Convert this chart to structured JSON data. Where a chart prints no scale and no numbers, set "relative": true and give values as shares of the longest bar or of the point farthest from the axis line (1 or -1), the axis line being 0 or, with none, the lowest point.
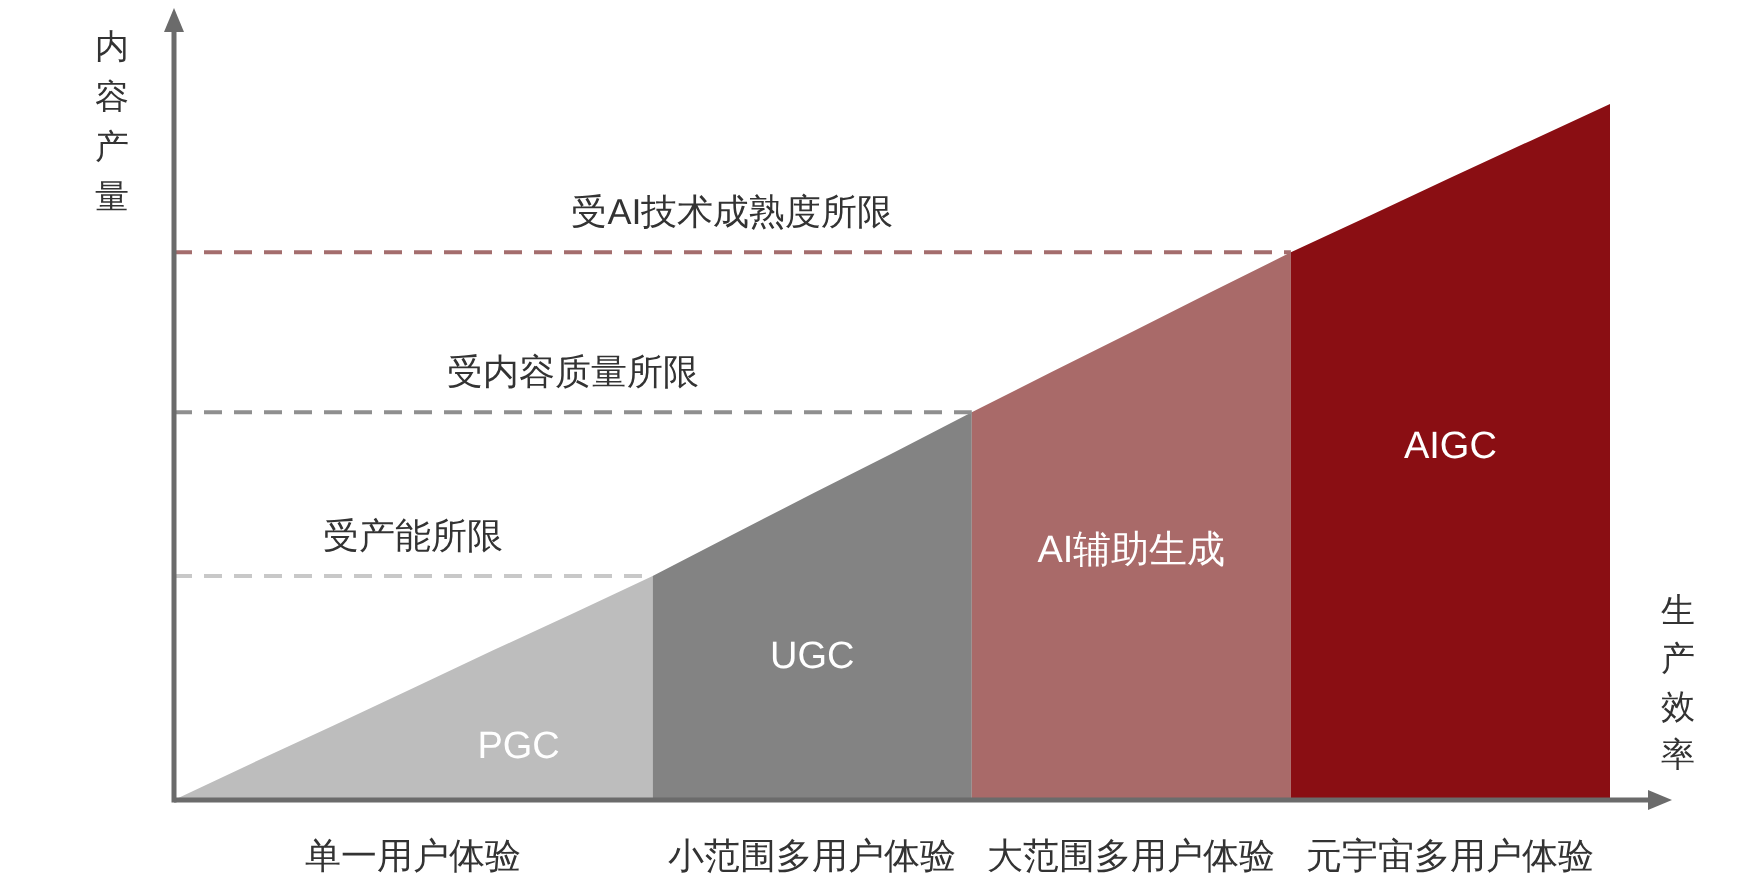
{
  "chart_data": {
    "type": "area",
    "relative": true,
    "xlabel": "生产效率",
    "ylabel": "内容产量",
    "categories": [
      null,
      null,
      null,
      "单一用户体验",
      null,
      null,
      null,
      null,
      "小范围多用户体验",
      null,
      null,
      null,
      "大范围多用户体验",
      null,
      null,
      null,
      "元宇宙多用户体验",
      null,
      null
    ],
    "series": [
      {
        "name": "PGC",
        "color": "#bdbdbd",
        "values": [
          0,
          0.054,
          0.107,
          0.161,
          0.215,
          0.268,
          0.322,
          null,
          null,
          null,
          null,
          null,
          null,
          null,
          null,
          null,
          null,
          null,
          null
        ]
      },
      {
        "name": "UGC",
        "color": "#838383",
        "values": [
          null,
          null,
          null,
          null,
          null,
          null,
          0.322,
          0.381,
          0.44,
          0.498,
          0.557,
          null,
          null,
          null,
          null,
          null,
          null,
          null,
          null
        ]
      },
      {
        "name": "AI辅助生成",
        "color": "#a96a69",
        "values": [
          null,
          null,
          null,
          null,
          null,
          null,
          null,
          null,
          null,
          null,
          0.557,
          0.615,
          0.672,
          0.73,
          0.787,
          null,
          null,
          null,
          null
        ]
      },
      {
        "name": "AIGC",
        "color": "#8a0e13",
        "values": [
          null,
          null,
          null,
          null,
          null,
          null,
          null,
          null,
          null,
          null,
          null,
          null,
          null,
          null,
          0.787,
          0.84,
          0.894,
          0.947,
          1.0
        ]
      }
    ],
    "ref_lines": [
      {
        "axis": "y",
        "value": 0.322,
        "label": "受产能所限",
        "color": "#c8c8c8",
        "line_style": "dashed"
      },
      {
        "axis": "y",
        "value": 0.557,
        "label": "受内容质量所限",
        "color": "#8f8f8f",
        "line_style": "dashed"
      },
      {
        "axis": "y",
        "value": 0.787,
        "label": "受AI技术成熟度所限",
        "color": "#a46d6d",
        "line_style": "dashed"
      }
    ]
  }
}
